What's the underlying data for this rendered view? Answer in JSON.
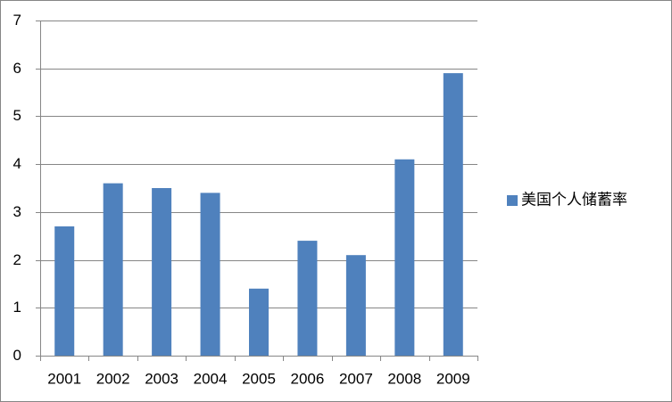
{
  "chart_data": {
    "type": "bar",
    "categories": [
      "2001",
      "2002",
      "2003",
      "2004",
      "2005",
      "2006",
      "2007",
      "2008",
      "2009"
    ],
    "series": [
      {
        "name": "美国个人储蓄率",
        "color": "#4f81bd",
        "values": [
          2.7,
          3.6,
          3.5,
          3.4,
          1.4,
          2.4,
          2.1,
          4.1,
          5.9
        ]
      }
    ],
    "ylim": [
      0,
      7
    ],
    "yticks": [
      0,
      1,
      2,
      3,
      4,
      5,
      6,
      7
    ],
    "grid": true,
    "legend": "right"
  }
}
